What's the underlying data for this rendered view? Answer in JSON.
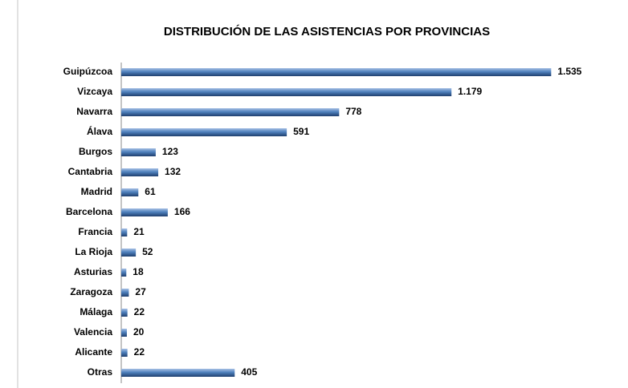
{
  "chart_data": {
    "type": "bar",
    "orientation": "horizontal",
    "title": "DISTRIBUCIÓN DE LAS ASISTENCIAS POR PROVINCIAS",
    "categories": [
      "Guipúzcoa",
      "Vizcaya",
      "Navarra",
      "Álava",
      "Burgos",
      "Cantabria",
      "Madrid",
      "Barcelona",
      "Francia",
      "La Rioja",
      "Asturias",
      "Zaragoza",
      "Málaga",
      "Valencia",
      "Alicante",
      "Otras"
    ],
    "values": [
      1535,
      1179,
      778,
      591,
      123,
      132,
      61,
      166,
      21,
      52,
      18,
      27,
      22,
      20,
      22,
      405
    ],
    "value_labels": [
      "1.535",
      "1.179",
      "778",
      "591",
      "123",
      "132",
      "61",
      "166",
      "21",
      "52",
      "18",
      "27",
      "22",
      "20",
      "22",
      "405"
    ],
    "color": "#4f81bd",
    "xlim": [
      0,
      1600
    ]
  }
}
